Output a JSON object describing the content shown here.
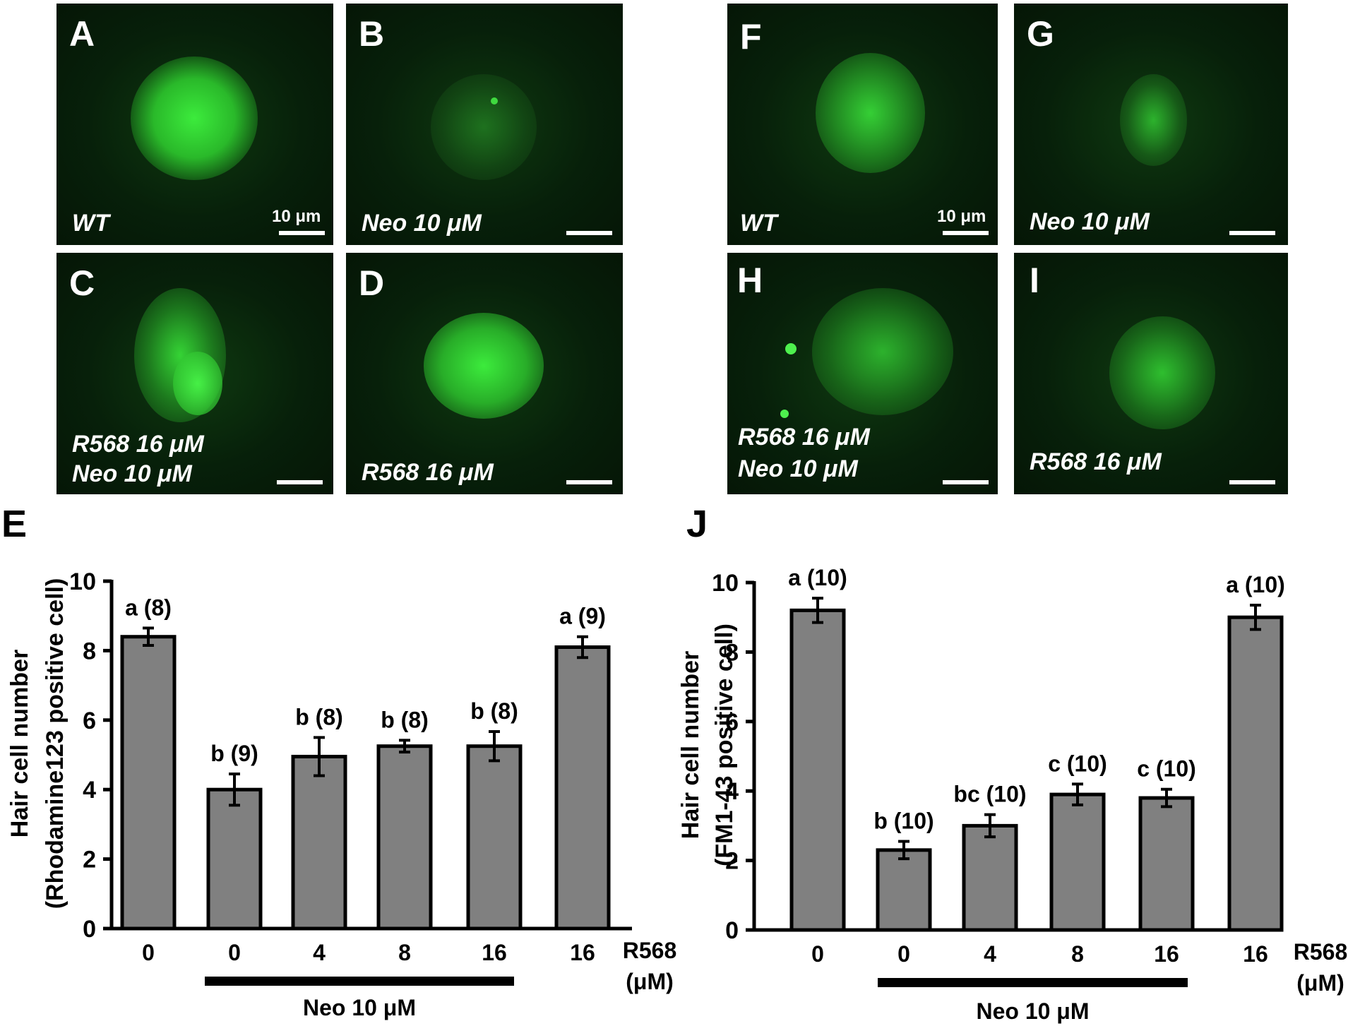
{
  "colors": {
    "fluorescence": "#33e633",
    "background": "#061a07",
    "bar_fill": "#808080",
    "bar_stroke": "#000000"
  },
  "micrographs": [
    {
      "label": "A",
      "condition": [
        "WT"
      ],
      "scale_text": "10 μm"
    },
    {
      "label": "B",
      "condition": [
        "Neo 10 μM"
      ],
      "scale_text": ""
    },
    {
      "label": "C",
      "condition": [
        "R568 16 μM",
        "Neo 10 μM"
      ],
      "scale_text": ""
    },
    {
      "label": "D",
      "condition": [
        "R568 16 μM"
      ],
      "scale_text": ""
    },
    {
      "label": "F",
      "condition": [
        "WT"
      ],
      "scale_text": "10 μm"
    },
    {
      "label": "G",
      "condition": [
        "Neo 10 μM"
      ],
      "scale_text": ""
    },
    {
      "label": "H",
      "condition": [
        "R568 16 μM",
        "Neo 10 μM"
      ],
      "scale_text": ""
    },
    {
      "label": "I",
      "condition": [
        "R568 16 μM"
      ],
      "scale_text": ""
    }
  ],
  "chart_data": [
    {
      "panel": "E",
      "type": "bar",
      "categories": [
        "0",
        "0",
        "4",
        "8",
        "16",
        "16"
      ],
      "values": [
        8.4,
        4.0,
        4.95,
        5.25,
        5.25,
        8.1
      ],
      "errors": [
        0.25,
        0.45,
        0.55,
        0.17,
        0.42,
        0.3
      ],
      "annotations": [
        "a (8)",
        "b (9)",
        "b (8)",
        "b (8)",
        "b (8)",
        "a (9)"
      ],
      "ylabel": [
        "Hair cell number",
        "(Rhodamine123 positive cell)"
      ],
      "ylim": [
        0,
        10
      ],
      "yticks": [
        "0",
        "2",
        "4",
        "6",
        "8",
        "10"
      ],
      "x_axis_label": [
        "R568",
        "(μM)"
      ],
      "treatment_bar_label": "Neo 10 μM",
      "treatment_span": [
        1,
        4
      ]
    },
    {
      "panel": "J",
      "type": "bar",
      "categories": [
        "0",
        "0",
        "4",
        "8",
        "16",
        "16"
      ],
      "values": [
        9.2,
        2.3,
        3.0,
        3.9,
        3.8,
        9.0
      ],
      "errors": [
        0.35,
        0.25,
        0.32,
        0.3,
        0.25,
        0.35
      ],
      "annotations": [
        "a (10)",
        "b (10)",
        "bc (10)",
        "c (10)",
        "c (10)",
        "a (10)"
      ],
      "ylabel": [
        "Hair cell number",
        "(FM1-43 positive cell)"
      ],
      "ylim": [
        0,
        10
      ],
      "yticks": [
        "0",
        "2",
        "4",
        "6",
        "8",
        "10"
      ],
      "x_axis_label": [
        "R568",
        "(μM)"
      ],
      "treatment_bar_label": "Neo 10 μM",
      "treatment_span": [
        1,
        4
      ]
    }
  ]
}
